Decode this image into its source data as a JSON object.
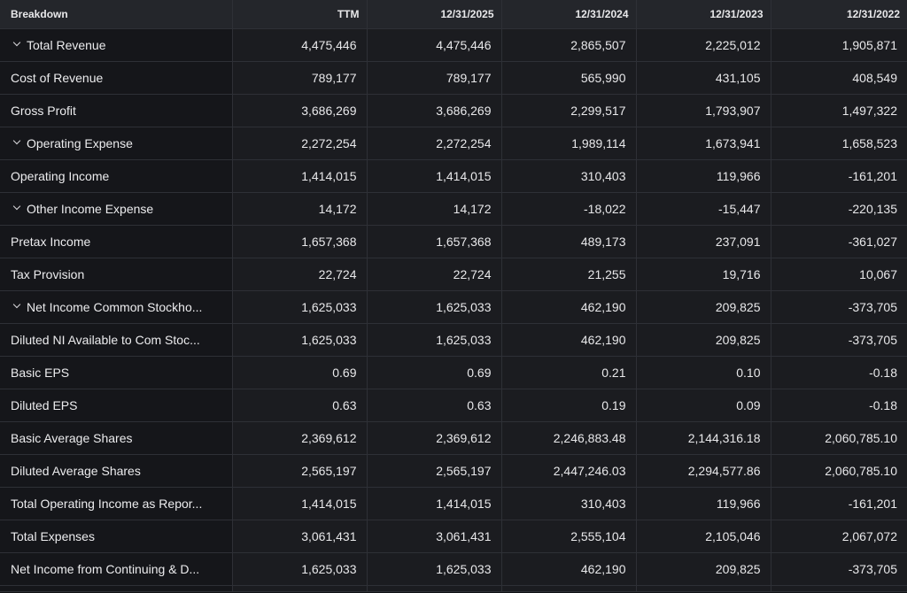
{
  "table": {
    "headers": [
      "Breakdown",
      "TTM",
      "12/31/2025",
      "12/31/2024",
      "12/31/2023",
      "12/31/2022"
    ],
    "rows": [
      {
        "label": "Total Revenue",
        "expandable": true,
        "values": [
          "4,475,446",
          "4,475,446",
          "2,865,507",
          "2,225,012",
          "1,905,871"
        ]
      },
      {
        "label": "Cost of Revenue",
        "expandable": false,
        "values": [
          "789,177",
          "789,177",
          "565,990",
          "431,105",
          "408,549"
        ]
      },
      {
        "label": "Gross Profit",
        "expandable": false,
        "values": [
          "3,686,269",
          "3,686,269",
          "2,299,517",
          "1,793,907",
          "1,497,322"
        ]
      },
      {
        "label": "Operating Expense",
        "expandable": true,
        "values": [
          "2,272,254",
          "2,272,254",
          "1,989,114",
          "1,673,941",
          "1,658,523"
        ]
      },
      {
        "label": "Operating Income",
        "expandable": false,
        "values": [
          "1,414,015",
          "1,414,015",
          "310,403",
          "119,966",
          "-161,201"
        ]
      },
      {
        "label": "Other Income Expense",
        "expandable": true,
        "values": [
          "14,172",
          "14,172",
          "-18,022",
          "-15,447",
          "-220,135"
        ]
      },
      {
        "label": "Pretax Income",
        "expandable": false,
        "values": [
          "1,657,368",
          "1,657,368",
          "489,173",
          "237,091",
          "-361,027"
        ]
      },
      {
        "label": "Tax Provision",
        "expandable": false,
        "values": [
          "22,724",
          "22,724",
          "21,255",
          "19,716",
          "10,067"
        ]
      },
      {
        "label": "Net Income Common Stockho...",
        "expandable": true,
        "values": [
          "1,625,033",
          "1,625,033",
          "462,190",
          "209,825",
          "-373,705"
        ]
      },
      {
        "label": "Diluted NI Available to Com Stoc...",
        "expandable": false,
        "values": [
          "1,625,033",
          "1,625,033",
          "462,190",
          "209,825",
          "-373,705"
        ]
      },
      {
        "label": "Basic EPS",
        "expandable": false,
        "values": [
          "0.69",
          "0.69",
          "0.21",
          "0.10",
          "-0.18"
        ]
      },
      {
        "label": "Diluted EPS",
        "expandable": false,
        "values": [
          "0.63",
          "0.63",
          "0.19",
          "0.09",
          "-0.18"
        ]
      },
      {
        "label": "Basic Average Shares",
        "expandable": false,
        "values": [
          "2,369,612",
          "2,369,612",
          "2,246,883.48",
          "2,144,316.18",
          "2,060,785.10"
        ]
      },
      {
        "label": "Diluted Average Shares",
        "expandable": false,
        "values": [
          "2,565,197",
          "2,565,197",
          "2,447,246.03",
          "2,294,577.86",
          "2,060,785.10"
        ]
      },
      {
        "label": "Total Operating Income as Repor...",
        "expandable": false,
        "values": [
          "1,414,015",
          "1,414,015",
          "310,403",
          "119,966",
          "-161,201"
        ]
      },
      {
        "label": "Total Expenses",
        "expandable": false,
        "values": [
          "3,061,431",
          "3,061,431",
          "2,555,104",
          "2,105,046",
          "2,067,072"
        ]
      },
      {
        "label": "Net Income from Continuing & D...",
        "expandable": false,
        "values": [
          "1,625,033",
          "1,625,033",
          "462,190",
          "209,825",
          "-373,705"
        ]
      }
    ]
  },
  "icons": {
    "expand": "chevron-down-icon"
  }
}
